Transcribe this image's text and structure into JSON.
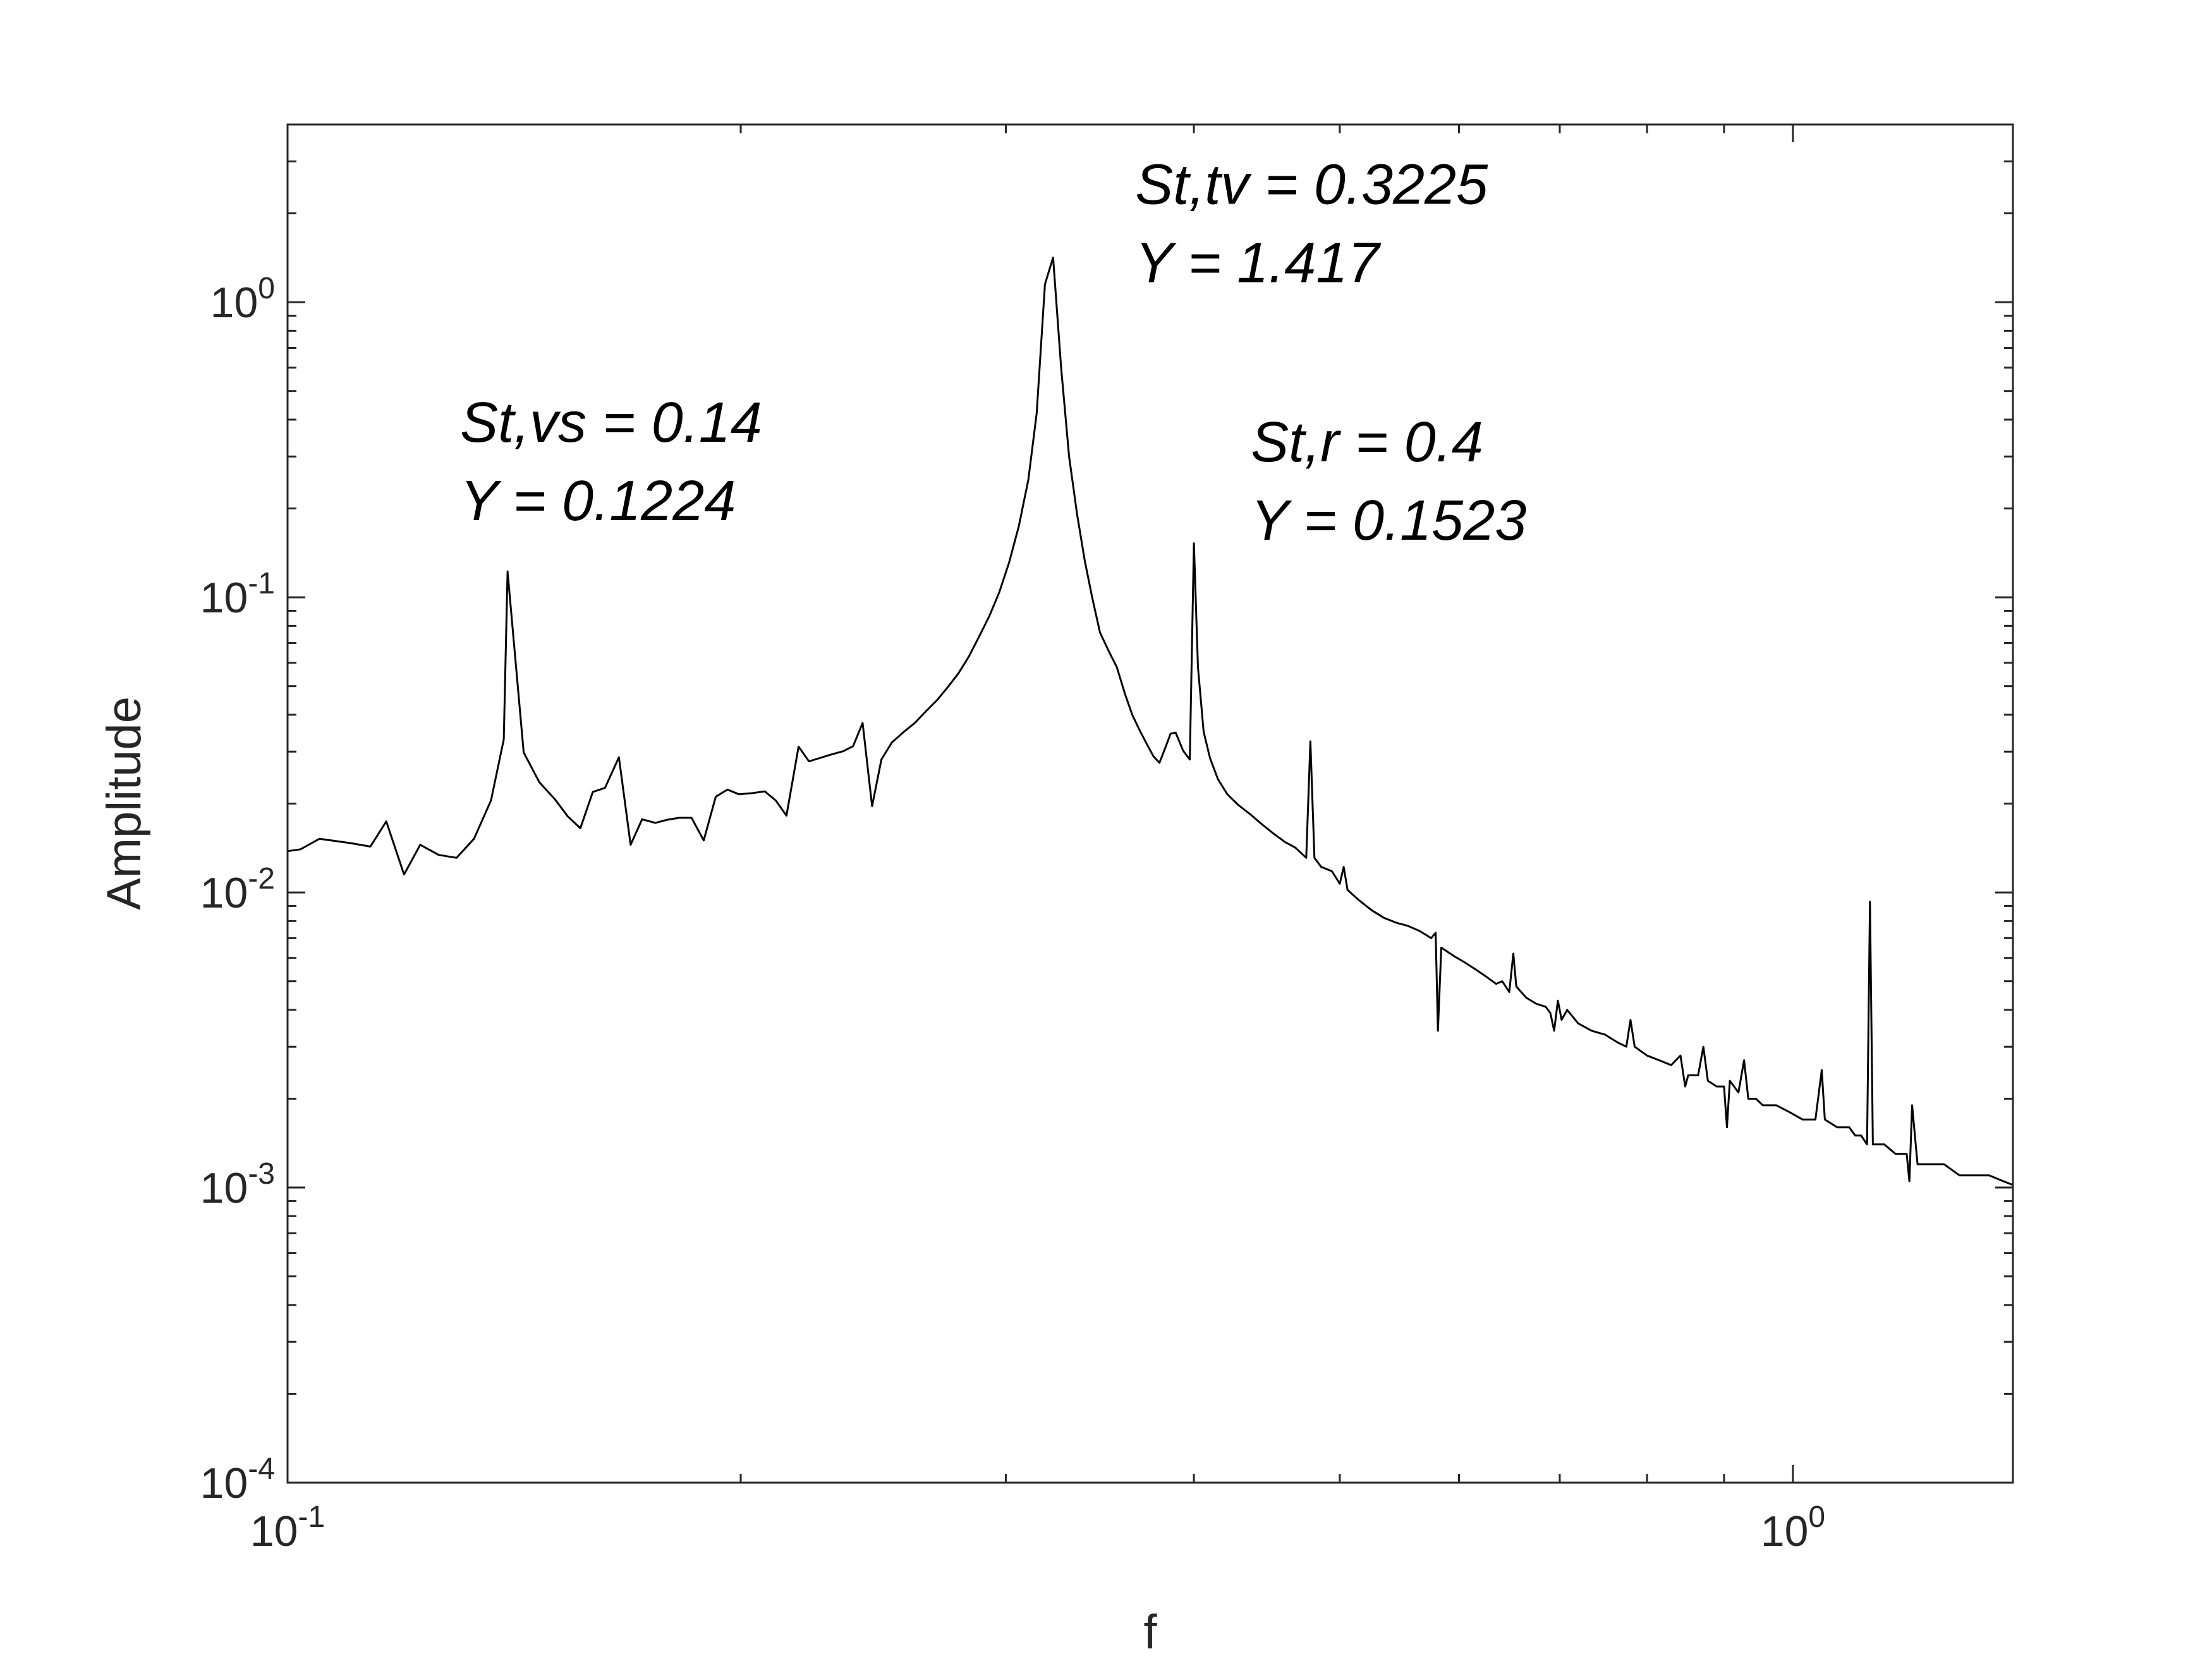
{
  "chart_data": {
    "type": "line",
    "title": "",
    "xlabel": "f",
    "ylabel": "Amplitude",
    "xscale": "log",
    "yscale": "log",
    "xlim": [
      0.1,
      1.4
    ],
    "ylim": [
      0.0001,
      4
    ],
    "grid": false,
    "x_ticks": [
      {
        "value": 0.1,
        "base": "10",
        "exp": "-1"
      },
      {
        "value": 1,
        "base": "10",
        "exp": "0"
      }
    ],
    "y_ticks": [
      {
        "value": 0.0001,
        "base": "10",
        "exp": "-4"
      },
      {
        "value": 0.001,
        "base": "10",
        "exp": "-3"
      },
      {
        "value": 0.01,
        "base": "10",
        "exp": "-2"
      },
      {
        "value": 0.1,
        "base": "10",
        "exp": "-1"
      },
      {
        "value": 1,
        "base": "10",
        "exp": "0"
      }
    ],
    "annotations": [
      {
        "line1": "St,vs = 0.14",
        "line2": "Y = 0.1224",
        "x": 0.14,
        "y": 0.1224
      },
      {
        "line1": "St,tv = 0.3225",
        "line2": "Y = 1.417",
        "x": 0.3225,
        "y": 1.417
      },
      {
        "line1": "St,r = 0.4",
        "line2": "Y = 0.1523",
        "x": 0.4,
        "y": 0.1523
      }
    ],
    "series": [
      {
        "color": "#000000",
        "points": [
          [
            0.1,
            0.0138
          ],
          [
            0.102,
            0.014
          ],
          [
            0.105,
            0.0152
          ],
          [
            0.11,
            0.0147
          ],
          [
            0.1135,
            0.0143
          ],
          [
            0.1163,
            0.0174
          ],
          [
            0.1195,
            0.0115
          ],
          [
            0.1225,
            0.0145
          ],
          [
            0.126,
            0.0134
          ],
          [
            0.1295,
            0.0131
          ],
          [
            0.133,
            0.0152
          ],
          [
            0.1365,
            0.0205
          ],
          [
            0.1392,
            0.033
          ],
          [
            0.14,
            0.1224
          ],
          [
            0.1435,
            0.0298
          ],
          [
            0.147,
            0.0236
          ],
          [
            0.1505,
            0.0207
          ],
          [
            0.1535,
            0.0181
          ],
          [
            0.1565,
            0.0165
          ],
          [
            0.1595,
            0.0219
          ],
          [
            0.1625,
            0.0226
          ],
          [
            0.166,
            0.0287
          ],
          [
            0.169,
            0.0145
          ],
          [
            0.172,
            0.0177
          ],
          [
            0.1755,
            0.0172
          ],
          [
            0.1785,
            0.0176
          ],
          [
            0.182,
            0.0179
          ],
          [
            0.1855,
            0.0179
          ],
          [
            0.189,
            0.015
          ],
          [
            0.1925,
            0.0211
          ],
          [
            0.196,
            0.0223
          ],
          [
            0.1995,
            0.0215
          ],
          [
            0.2035,
            0.0217
          ],
          [
            0.2075,
            0.022
          ],
          [
            0.211,
            0.0205
          ],
          [
            0.2145,
            0.0182
          ],
          [
            0.2185,
            0.0312
          ],
          [
            0.222,
            0.0278
          ],
          [
            0.226,
            0.0286
          ],
          [
            0.23,
            0.0294
          ],
          [
            0.234,
            0.0301
          ],
          [
            0.2375,
            0.0313
          ],
          [
            0.241,
            0.0375
          ],
          [
            0.2445,
            0.0196
          ],
          [
            0.248,
            0.0282
          ],
          [
            0.252,
            0.0322
          ],
          [
            0.2565,
            0.0349
          ],
          [
            0.261,
            0.0375
          ],
          [
            0.2655,
            0.0411
          ],
          [
            0.27,
            0.0448
          ],
          [
            0.2745,
            0.0496
          ],
          [
            0.279,
            0.0552
          ],
          [
            0.2835,
            0.063
          ],
          [
            0.288,
            0.0736
          ],
          [
            0.2925,
            0.0863
          ],
          [
            0.297,
            0.104
          ],
          [
            0.3015,
            0.131
          ],
          [
            0.306,
            0.174
          ],
          [
            0.3105,
            0.25
          ],
          [
            0.3145,
            0.42
          ],
          [
            0.3185,
            1.15
          ],
          [
            0.3225,
            1.417
          ],
          [
            0.3265,
            0.6
          ],
          [
            0.3305,
            0.3
          ],
          [
            0.3345,
            0.192
          ],
          [
            0.3385,
            0.133
          ],
          [
            0.3425,
            0.099
          ],
          [
            0.3465,
            0.076
          ],
          [
            0.351,
            0.066
          ],
          [
            0.3555,
            0.058
          ],
          [
            0.36,
            0.047
          ],
          [
            0.364,
            0.04
          ],
          [
            0.368,
            0.0356
          ],
          [
            0.372,
            0.032
          ],
          [
            0.376,
            0.0289
          ],
          [
            0.3795,
            0.0275
          ],
          [
            0.383,
            0.031
          ],
          [
            0.386,
            0.0345
          ],
          [
            0.389,
            0.0348
          ],
          [
            0.3935,
            0.0302
          ],
          [
            0.3975,
            0.0282
          ],
          [
            0.4,
            0.1523
          ],
          [
            0.4025,
            0.058
          ],
          [
            0.406,
            0.035
          ],
          [
            0.41,
            0.0285
          ],
          [
            0.415,
            0.0242
          ],
          [
            0.421,
            0.0215
          ],
          [
            0.428,
            0.0198
          ],
          [
            0.436,
            0.0184
          ],
          [
            0.444,
            0.017
          ],
          [
            0.452,
            0.0158
          ],
          [
            0.46,
            0.0148
          ],
          [
            0.467,
            0.0142
          ],
          [
            0.472,
            0.0135
          ],
          [
            0.475,
            0.0131
          ],
          [
            0.478,
            0.0325
          ],
          [
            0.481,
            0.0131
          ],
          [
            0.486,
            0.0122
          ],
          [
            0.494,
            0.0118
          ],
          [
            0.5,
            0.0107
          ],
          [
            0.503,
            0.0122
          ],
          [
            0.506,
            0.0102
          ],
          [
            0.515,
            0.0094
          ],
          [
            0.525,
            0.0087
          ],
          [
            0.535,
            0.0082
          ],
          [
            0.545,
            0.0079
          ],
          [
            0.555,
            0.0077
          ],
          [
            0.565,
            0.0074
          ],
          [
            0.575,
            0.007
          ],
          [
            0.579,
            0.0073
          ],
          [
            0.581,
            0.0034
          ],
          [
            0.584,
            0.0065
          ],
          [
            0.595,
            0.0061
          ],
          [
            0.605,
            0.0058
          ],
          [
            0.615,
            0.0055
          ],
          [
            0.625,
            0.0052
          ],
          [
            0.635,
            0.0049
          ],
          [
            0.641,
            0.005
          ],
          [
            0.648,
            0.0046
          ],
          [
            0.652,
            0.0062
          ],
          [
            0.655,
            0.0048
          ],
          [
            0.665,
            0.0044
          ],
          [
            0.675,
            0.0042
          ],
          [
            0.685,
            0.0041
          ],
          [
            0.69,
            0.0039
          ],
          [
            0.694,
            0.0034
          ],
          [
            0.698,
            0.0043
          ],
          [
            0.702,
            0.0037
          ],
          [
            0.708,
            0.004
          ],
          [
            0.72,
            0.0036
          ],
          [
            0.735,
            0.0034
          ],
          [
            0.75,
            0.0033
          ],
          [
            0.765,
            0.0031
          ],
          [
            0.775,
            0.003
          ],
          [
            0.78,
            0.0037
          ],
          [
            0.785,
            0.003
          ],
          [
            0.8,
            0.0028
          ],
          [
            0.815,
            0.0027
          ],
          [
            0.83,
            0.0026
          ],
          [
            0.842,
            0.0028
          ],
          [
            0.848,
            0.0022
          ],
          [
            0.852,
            0.0024
          ],
          [
            0.865,
            0.0024
          ],
          [
            0.872,
            0.003
          ],
          [
            0.878,
            0.0023
          ],
          [
            0.89,
            0.0022
          ],
          [
            0.9,
            0.0022
          ],
          [
            0.904,
            0.0016
          ],
          [
            0.908,
            0.0023
          ],
          [
            0.92,
            0.0021
          ],
          [
            0.928,
            0.0027
          ],
          [
            0.934,
            0.002
          ],
          [
            0.945,
            0.002
          ],
          [
            0.955,
            0.0019
          ],
          [
            0.975,
            0.0019
          ],
          [
            0.995,
            0.0018
          ],
          [
            1.015,
            0.0017
          ],
          [
            1.035,
            0.0017
          ],
          [
            1.045,
            0.0025
          ],
          [
            1.05,
            0.0017
          ],
          [
            1.07,
            0.0016
          ],
          [
            1.09,
            0.0016
          ],
          [
            1.1,
            0.0015
          ],
          [
            1.11,
            0.0015
          ],
          [
            1.12,
            0.0014
          ],
          [
            1.125,
            0.0093
          ],
          [
            1.13,
            0.0014
          ],
          [
            1.15,
            0.0014
          ],
          [
            1.17,
            0.0013
          ],
          [
            1.19,
            0.0013
          ],
          [
            1.195,
            0.00105
          ],
          [
            1.2,
            0.0019
          ],
          [
            1.21,
            0.0012
          ],
          [
            1.23,
            0.0012
          ],
          [
            1.26,
            0.0012
          ],
          [
            1.29,
            0.0011
          ],
          [
            1.32,
            0.0011
          ],
          [
            1.35,
            0.0011
          ],
          [
            1.38,
            0.00105
          ],
          [
            1.4,
            0.00102
          ]
        ]
      }
    ]
  }
}
